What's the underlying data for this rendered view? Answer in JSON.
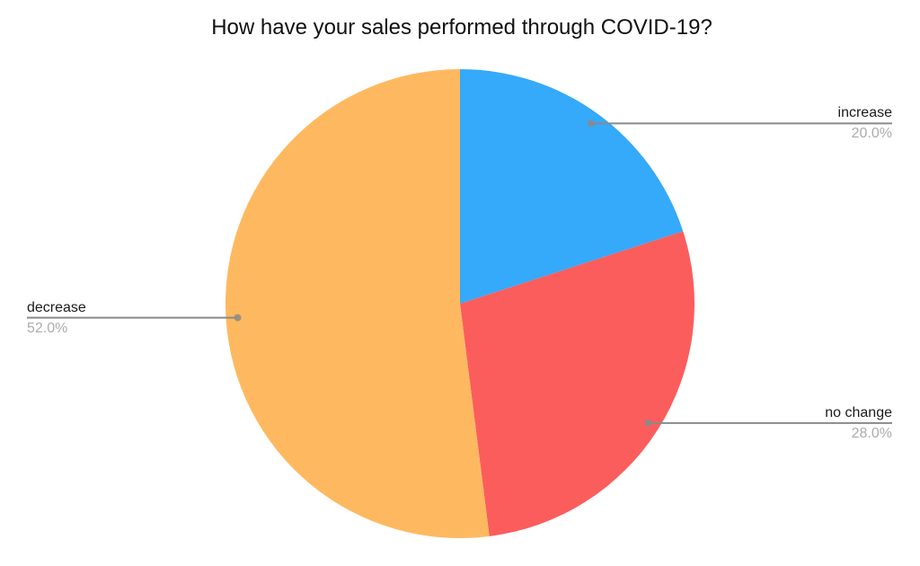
{
  "chart_data": {
    "type": "pie",
    "title": "How have your sales performed through COVID-19?",
    "start_angle_deg": 0,
    "direction": "clockwise",
    "legend": "none",
    "slices": [
      {
        "label": "increase",
        "value": 20.0,
        "display_value": "20.0%",
        "color": "#35a9fa",
        "callout_side": "right"
      },
      {
        "label": "no change",
        "value": 28.0,
        "display_value": "28.0%",
        "color": "#fb5d5d",
        "callout_side": "right"
      },
      {
        "label": "decrease",
        "value": 52.0,
        "display_value": "52.0%",
        "color": "#feb960",
        "callout_side": "left"
      }
    ],
    "colors": {
      "label_text": "#1b1b1b",
      "value_text": "#acacac",
      "leader_line": "#8a8a8a",
      "background": "#ffffff",
      "title_text": "#111111"
    }
  }
}
